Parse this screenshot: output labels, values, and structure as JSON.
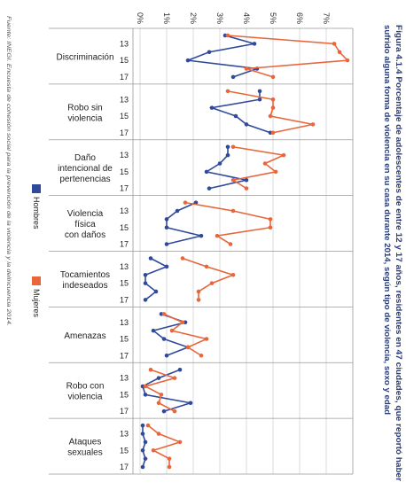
{
  "chart_data": {
    "type": "line",
    "title": [
      "Figura 4.1.4 Porcentaje de adolescentes de entre 12 y 17 años, residentes en 47 ciudades, que reportó haber",
      "sufrido alguna forma de violencia en su casa durante 2014, según tipo de violencia, sexo y edad"
    ],
    "source": "Fuente: INEGI. Encuesta de cohesión social para la prevención de la violencia y la delincuencia 2014.",
    "groups": [
      [
        "Discriminación"
      ],
      [
        "Robo sin",
        "violencia"
      ],
      [
        "Daño",
        "intencional de",
        "pertenencias"
      ],
      [
        "Violencia",
        "física",
        "con daños"
      ],
      [
        "Tocamientos",
        "indeseados"
      ],
      [
        "Amenazas"
      ],
      [
        "Robo con",
        "violencia"
      ],
      [
        "Ataques",
        "sexuales"
      ]
    ],
    "categories": [
      null,
      "13",
      null,
      "15",
      null,
      "17"
    ],
    "xlim": [
      0,
      8
    ],
    "xticks": [
      {
        "value": 0,
        "label": "0%"
      },
      {
        "value": 1,
        "label": "1%"
      },
      {
        "value": 2,
        "label": "2%"
      },
      {
        "value": 3,
        "label": "3%"
      },
      {
        "value": 4,
        "label": "4%"
      },
      {
        "value": 5,
        "label": "5%"
      },
      {
        "value": 6,
        "label": "6%"
      },
      {
        "value": 7,
        "label": "7%"
      }
    ],
    "grid": true,
    "series": [
      {
        "name": "Hombres",
        "color": "#2f4a9a",
        "values": [
          [
            3.2,
            4.3,
            2.6,
            1.8,
            4.4,
            3.5
          ],
          [
            4.5,
            4.5,
            2.7,
            3.6,
            4.0,
            4.9
          ],
          [
            3.3,
            3.3,
            3.0,
            2.5,
            4.0,
            2.6
          ],
          [
            2.1,
            1.4,
            1.0,
            1.0,
            2.3,
            1.0
          ],
          [
            0.4,
            1.0,
            0.2,
            0.2,
            0.6,
            0.2
          ],
          [
            0.8,
            1.7,
            0.5,
            0.9,
            1.8,
            1.0
          ],
          [
            1.5,
            0.7,
            0.1,
            0.2,
            1.9,
            0.9
          ],
          [
            0.1,
            0.1,
            0.2,
            0.1,
            0.2,
            0.1
          ]
        ]
      },
      {
        "name": "Mujeres",
        "color": "#e8663a",
        "values": [
          [
            3.3,
            7.3,
            7.5,
            7.8,
            4.0,
            5.0
          ],
          [
            3.3,
            5.0,
            5.0,
            4.9,
            6.5,
            5.0
          ],
          [
            3.5,
            5.4,
            4.7,
            5.1,
            3.5,
            4.0
          ],
          [
            1.7,
            3.5,
            4.9,
            4.9,
            2.9,
            3.4
          ],
          [
            1.6,
            2.5,
            3.5,
            2.7,
            2.2,
            2.2
          ],
          [
            0.9,
            1.6,
            1.2,
            2.5,
            1.8,
            2.3
          ],
          [
            0.4,
            1.3,
            0.2,
            0.8,
            0.7,
            1.3
          ],
          [
            0.3,
            0.7,
            1.5,
            0.5,
            1.1,
            1.1
          ]
        ]
      }
    ]
  }
}
